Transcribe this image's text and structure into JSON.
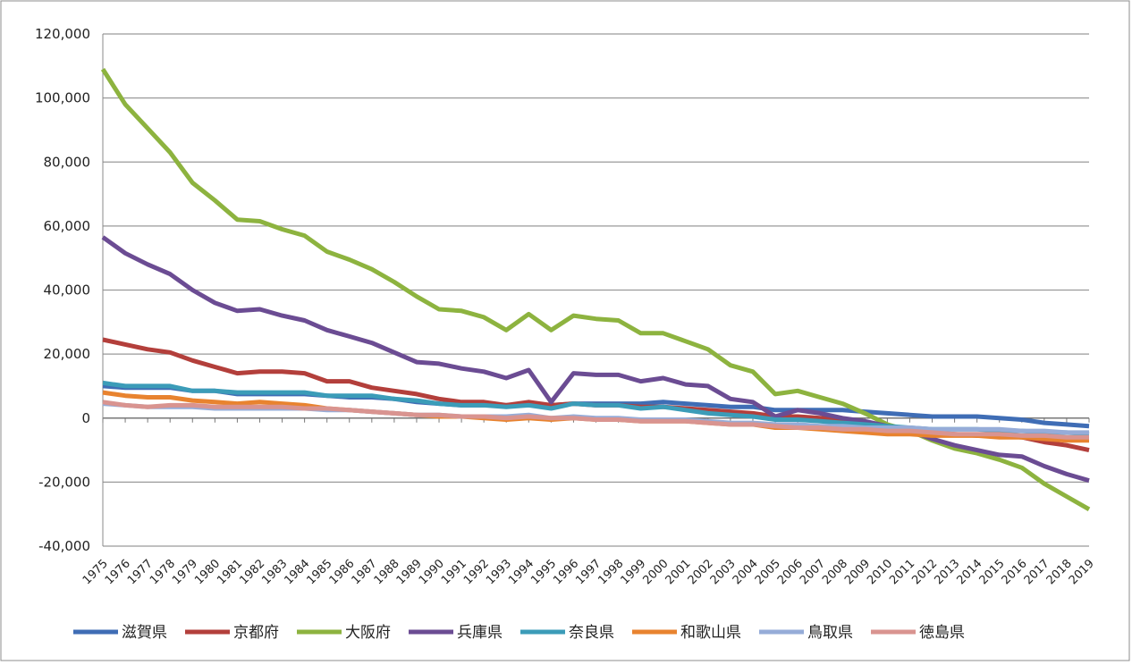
{
  "chart_data": {
    "type": "line",
    "grid": true,
    "legend": "bottom",
    "categories": [
      "1975",
      "1976",
      "1977",
      "1978",
      "1979",
      "1980",
      "1981",
      "1982",
      "1983",
      "1984",
      "1985",
      "1986",
      "1987",
      "1988",
      "1989",
      "1990",
      "1991",
      "1992",
      "1993",
      "1994",
      "1995",
      "1996",
      "1997",
      "1998",
      "1999",
      "2000",
      "2001",
      "2002",
      "2003",
      "2004",
      "2005",
      "2006",
      "2007",
      "2008",
      "2009",
      "2010",
      "2011",
      "2012",
      "2013",
      "2014",
      "2015",
      "2016",
      "2017",
      "2018",
      "2019"
    ],
    "ylim": [
      -40000,
      120000
    ],
    "yticks": [
      {
        "value": -40000,
        "label": "-40,000"
      },
      {
        "value": -20000,
        "label": "-20,000"
      },
      0,
      {
        "value": 20000,
        "label": "20,000"
      },
      {
        "value": 40000,
        "label": "40,000"
      },
      {
        "value": 60000,
        "label": "60,000"
      },
      {
        "value": 80000,
        "label": "80,000"
      },
      {
        "value": 100000,
        "label": "100,000"
      },
      {
        "value": 120000,
        "label": "120,000"
      }
    ],
    "series": [
      {
        "name": "滋賀県",
        "color": "#3f6db5",
        "values": [
          10000,
          9500,
          9500,
          9500,
          8500,
          8500,
          7500,
          7500,
          7500,
          7500,
          7000,
          6500,
          6500,
          6000,
          5000,
          4500,
          4000,
          4000,
          4000,
          4500,
          4000,
          4500,
          4500,
          4500,
          4500,
          5000,
          4500,
          4000,
          3500,
          3500,
          2500,
          2500,
          2500,
          2500,
          2000,
          1500,
          1000,
          500,
          500,
          500,
          0,
          -500,
          -1500,
          -2000,
          -2500
        ]
      },
      {
        "name": "京都府",
        "color": "#b33f3b",
        "values": [
          24500,
          23000,
          21500,
          20500,
          18000,
          16000,
          14000,
          14500,
          14500,
          14000,
          11500,
          11500,
          9500,
          8500,
          7500,
          6000,
          5000,
          5000,
          4000,
          5000,
          4000,
          4500,
          4000,
          4000,
          3500,
          3500,
          3000,
          2500,
          2000,
          1500,
          500,
          500,
          0,
          -500,
          -1500,
          -2500,
          -3500,
          -4500,
          -5000,
          -5500,
          -5500,
          -6000,
          -7500,
          -8500,
          -10000
        ]
      },
      {
        "name": "大阪府",
        "color": "#8db33f",
        "values": [
          109000,
          98000,
          90500,
          83000,
          73500,
          68000,
          62000,
          61500,
          59000,
          57000,
          52000,
          49500,
          46500,
          42500,
          38000,
          34000,
          33500,
          31500,
          27500,
          32500,
          27500,
          32000,
          31000,
          30500,
          26500,
          26500,
          24000,
          21500,
          16500,
          14500,
          7500,
          8500,
          6500,
          4500,
          1500,
          -2000,
          -4000,
          -7000,
          -9500,
          -11000,
          -13000,
          -15500,
          -20500,
          -24500,
          -28500
        ]
      },
      {
        "name": "兵庫県",
        "color": "#6b4c93",
        "values": [
          56500,
          51500,
          48000,
          45000,
          40000,
          36000,
          33500,
          34000,
          32000,
          30500,
          27500,
          25500,
          23500,
          20500,
          17500,
          17000,
          15500,
          14500,
          12500,
          15000,
          5000,
          14000,
          13500,
          13500,
          11500,
          12500,
          10500,
          10000,
          6000,
          5000,
          500,
          2500,
          1500,
          0,
          -1000,
          -2500,
          -4000,
          -6500,
          -8500,
          -10000,
          -11500,
          -12000,
          -15000,
          -17500,
          -19500
        ]
      },
      {
        "name": "奈良県",
        "color": "#3b9cb8",
        "values": [
          11000,
          10000,
          10000,
          10000,
          8500,
          8500,
          8000,
          8000,
          8000,
          8000,
          7000,
          7000,
          7000,
          6000,
          5500,
          4500,
          4000,
          4000,
          3500,
          4000,
          3000,
          4500,
          4000,
          4000,
          3000,
          3500,
          2500,
          1500,
          1000,
          500,
          -500,
          -500,
          -1000,
          -1500,
          -2000,
          -2500,
          -3000,
          -3500,
          -3500,
          -3500,
          -4000,
          -4000,
          -4500,
          -4500,
          -5000
        ]
      },
      {
        "name": "和歌山県",
        "color": "#e8832f",
        "values": [
          8000,
          7000,
          6500,
          6500,
          5500,
          5000,
          4500,
          5000,
          4500,
          4000,
          3000,
          2500,
          2000,
          1500,
          1000,
          500,
          500,
          0,
          -500,
          0,
          -500,
          0,
          -500,
          -500,
          -1000,
          -1000,
          -1000,
          -1500,
          -2000,
          -2000,
          -3000,
          -3000,
          -3500,
          -4000,
          -4500,
          -5000,
          -5000,
          -5500,
          -5500,
          -5500,
          -6000,
          -6000,
          -6500,
          -7000,
          -7000
        ]
      },
      {
        "name": "鳥取県",
        "color": "#96acd8",
        "values": [
          4500,
          4000,
          3500,
          3500,
          3500,
          3000,
          3000,
          3000,
          3000,
          3000,
          2500,
          2500,
          2000,
          1500,
          1000,
          1000,
          500,
          500,
          500,
          1000,
          0,
          500,
          0,
          0,
          -500,
          -500,
          -500,
          -1000,
          -1500,
          -1500,
          -2000,
          -2000,
          -2500,
          -2500,
          -3000,
          -3000,
          -3000,
          -3500,
          -3500,
          -3500,
          -3500,
          -4000,
          -4000,
          -4500,
          -4500
        ]
      },
      {
        "name": "徳島県",
        "color": "#d99490",
        "values": [
          5000,
          4000,
          3500,
          4000,
          4000,
          3500,
          3500,
          3500,
          3500,
          3000,
          3000,
          2500,
          2000,
          1500,
          1000,
          1000,
          500,
          500,
          0,
          500,
          0,
          0,
          -500,
          -500,
          -1000,
          -1000,
          -1000,
          -1500,
          -2000,
          -2000,
          -2500,
          -3000,
          -3000,
          -3500,
          -3500,
          -4000,
          -4000,
          -4500,
          -5000,
          -5000,
          -5000,
          -5500,
          -5500,
          -6000,
          -6000
        ]
      }
    ]
  }
}
